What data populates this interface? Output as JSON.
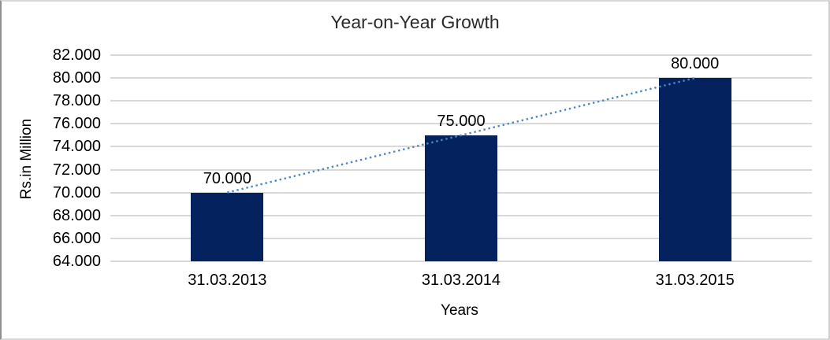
{
  "chart_data": {
    "type": "bar",
    "title": "Year-on-Year Growth",
    "categories": [
      "31.03.2013",
      "31.03.2014",
      "31.03.2015"
    ],
    "values": [
      70,
      75,
      80
    ],
    "value_labels": [
      "70.000",
      "75.000",
      "80.000"
    ],
    "series": [
      {
        "name": "bar-series",
        "values": [
          70,
          75,
          80
        ]
      },
      {
        "name": "trend-dotted-line",
        "values": [
          70,
          75,
          80
        ],
        "style": "dotted"
      }
    ],
    "xlabel": "Years",
    "ylabel": "Rs.in Million",
    "ylim": [
      64,
      82
    ],
    "ytick_step": 2,
    "ytick_labels": [
      "82.000",
      "80.000",
      "78.000",
      "76.000",
      "74.000",
      "72.000",
      "70.000",
      "68.000",
      "66.000",
      "64.000"
    ],
    "grid": true,
    "legend": "none",
    "colors": {
      "bar": "#04235E",
      "gridline": "#D9D9D9",
      "axis_line": "#D9D9D9",
      "trend": "#4E86C8",
      "text": "#000000",
      "title": "#2B2B2B"
    }
  }
}
